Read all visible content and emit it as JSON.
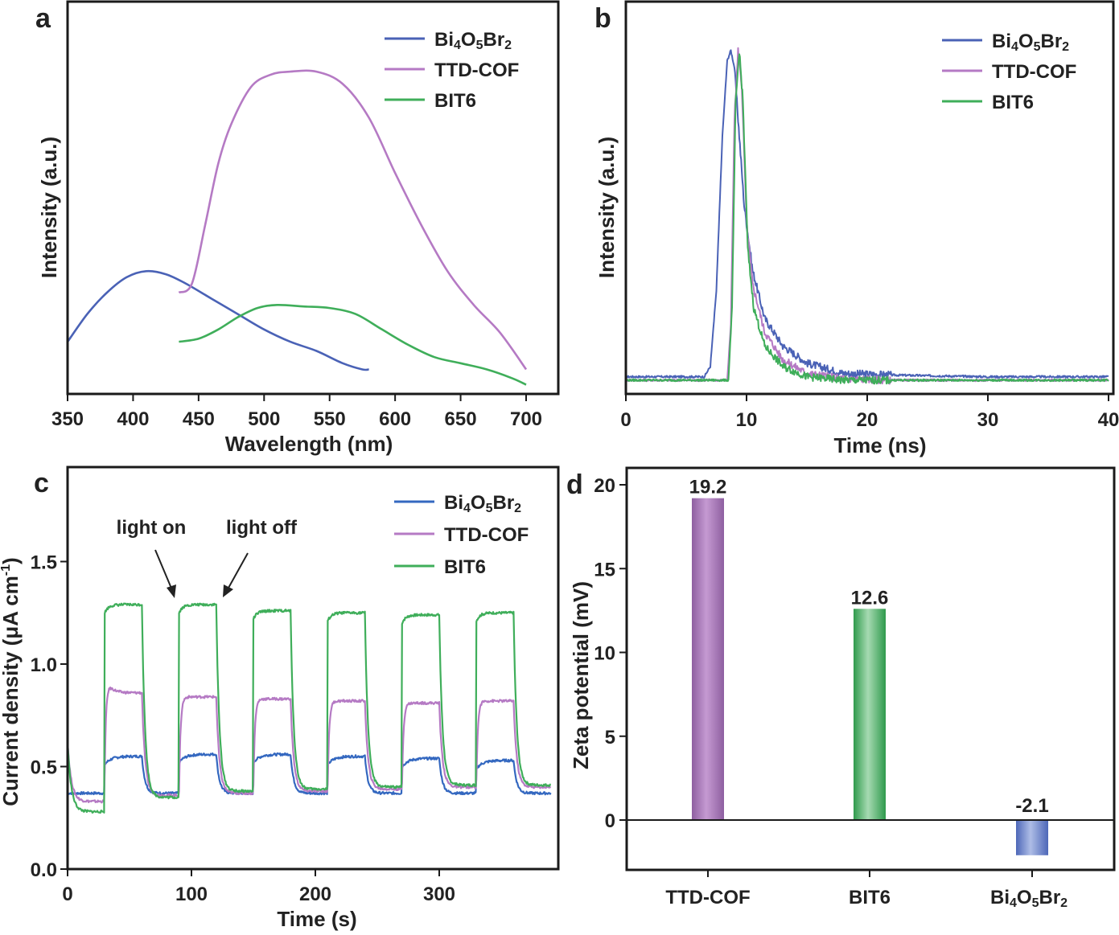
{
  "colors": {
    "blue": "#4a62b6",
    "purple": "#b57ac4",
    "green": "#3fae5a",
    "c_blue": "#3468c0",
    "bar_purple": "#a678b4",
    "bar_green": "#52b46a",
    "bar_blue": "#6f86c8",
    "axis": "#1a1a1a"
  },
  "chart_data": [
    {
      "id": "a",
      "panel_label": "a",
      "type": "line",
      "xlabel": "Wavelength (nm)",
      "ylabel": "Intensity (a.u.)",
      "xlim": [
        350,
        710
      ],
      "ylim": [
        0,
        1.1
      ],
      "xticks": [
        350,
        400,
        450,
        500,
        550,
        600,
        650,
        700
      ],
      "legend": "top-right",
      "series": [
        {
          "name": "Bi4O5Br2",
          "name_main": "Bi",
          "name_sub": [
            "4",
            "O",
            "5",
            "Br",
            "2"
          ],
          "color": "#4a62b6",
          "x": [
            350,
            365,
            380,
            395,
            410,
            425,
            440,
            460,
            480,
            500,
            520,
            540,
            560,
            575,
            580
          ],
          "y": [
            0.17,
            0.26,
            0.33,
            0.38,
            0.4,
            0.39,
            0.36,
            0.31,
            0.26,
            0.21,
            0.17,
            0.14,
            0.1,
            0.08,
            0.08
          ]
        },
        {
          "name": "TTD-COF",
          "color": "#b57ac4",
          "x": [
            435,
            445,
            455,
            465,
            475,
            490,
            505,
            520,
            540,
            560,
            580,
            600,
            620,
            640,
            660,
            680,
            700
          ],
          "y": [
            0.33,
            0.36,
            0.55,
            0.75,
            0.88,
            1.0,
            1.04,
            1.05,
            1.05,
            1.01,
            0.9,
            0.72,
            0.55,
            0.4,
            0.29,
            0.2,
            0.08
          ]
        },
        {
          "name": "BIT6",
          "color": "#3fae5a",
          "x": [
            435,
            450,
            465,
            480,
            495,
            510,
            530,
            550,
            570,
            590,
            610,
            630,
            650,
            670,
            690,
            700
          ],
          "y": [
            0.17,
            0.18,
            0.21,
            0.25,
            0.28,
            0.29,
            0.285,
            0.28,
            0.26,
            0.21,
            0.16,
            0.12,
            0.1,
            0.08,
            0.05,
            0.03
          ]
        }
      ]
    },
    {
      "id": "b",
      "panel_label": "b",
      "type": "line",
      "xlabel": "Time (ns)",
      "ylabel": "Intensity (a.u.)",
      "xlim": [
        0,
        40
      ],
      "ylim": [
        0,
        1.1
      ],
      "xticks": [
        0,
        10,
        20,
        30,
        40
      ],
      "legend": "top-right",
      "series": [
        {
          "name": "Bi4O5Br2",
          "name_main": "Bi",
          "name_sub": [
            "4",
            "O",
            "5",
            "Br",
            "2"
          ],
          "color": "#4a62b6",
          "x": [
            0,
            6.5,
            7.0,
            7.5,
            8.0,
            8.4,
            8.7,
            9.0,
            9.4,
            9.8,
            10.5,
            11.5,
            13,
            15,
            18,
            22,
            30,
            40
          ],
          "y": [
            0.05,
            0.05,
            0.08,
            0.3,
            0.75,
            0.97,
            1.0,
            0.95,
            0.75,
            0.55,
            0.36,
            0.22,
            0.14,
            0.09,
            0.06,
            0.055,
            0.05,
            0.05
          ]
        },
        {
          "name": "TTD-COF",
          "color": "#b57ac4",
          "x": [
            0,
            8.4,
            8.7,
            9.0,
            9.3,
            9.6,
            10.0,
            10.5,
            11.5,
            13,
            15,
            18,
            22,
            30,
            40
          ],
          "y": [
            0.04,
            0.04,
            0.2,
            0.8,
            1.0,
            0.9,
            0.5,
            0.32,
            0.18,
            0.1,
            0.06,
            0.045,
            0.04,
            0.04,
            0.04
          ]
        },
        {
          "name": "BIT6",
          "color": "#3fae5a",
          "x": [
            0,
            8.5,
            8.8,
            9.1,
            9.4,
            9.7,
            10.1,
            10.6,
            11.5,
            13,
            15,
            18,
            22,
            30,
            40
          ],
          "y": [
            0.04,
            0.04,
            0.25,
            0.85,
            1.0,
            0.85,
            0.42,
            0.25,
            0.14,
            0.08,
            0.05,
            0.04,
            0.04,
            0.04,
            0.04
          ]
        }
      ]
    },
    {
      "id": "c",
      "panel_label": "c",
      "type": "line",
      "xlabel": "Time (s)",
      "ylabel_main": "Current density (μA cm",
      "ylabel_sup": "-1",
      "ylabel_close": ")",
      "ylabel": "Current density (μA cm-1)",
      "xlim": [
        0,
        390
      ],
      "ylim": [
        0,
        1.85
      ],
      "xticks": [
        0,
        100,
        200,
        300
      ],
      "yticks": [
        0.0,
        0.5,
        1.0,
        1.5
      ],
      "ytick_labels": [
        "0.0",
        "0.5",
        "1.0",
        "1.5"
      ],
      "legend": "top-right",
      "annotations": [
        {
          "text": "light on"
        },
        {
          "text": "light off"
        }
      ],
      "cycles_on_off_s": [
        [
          30,
          60
        ],
        [
          90,
          120
        ],
        [
          150,
          180
        ],
        [
          210,
          240
        ],
        [
          270,
          300
        ],
        [
          330,
          360
        ]
      ],
      "series": [
        {
          "name": "Bi4O5Br2",
          "name_main": "Bi",
          "name_sub": [
            "4",
            "O",
            "5",
            "Br",
            "2"
          ],
          "color": "#3468c0",
          "on_levels": [
            0.55,
            0.56,
            0.56,
            0.55,
            0.54,
            0.53
          ],
          "off_levels": [
            0.37,
            0.37,
            0.37,
            0.37,
            0.37,
            0.37
          ]
        },
        {
          "name": "TTD-COF",
          "color": "#b57ac4",
          "on_levels": [
            0.86,
            0.84,
            0.83,
            0.82,
            0.81,
            0.82
          ],
          "off_levels": [
            0.33,
            0.36,
            0.37,
            0.38,
            0.39,
            0.4
          ]
        },
        {
          "name": "BIT6",
          "color": "#3fae5a",
          "on_levels": [
            1.29,
            1.29,
            1.26,
            1.25,
            1.24,
            1.25
          ],
          "off_levels": [
            0.28,
            0.35,
            0.38,
            0.39,
            0.4,
            0.41
          ]
        }
      ]
    },
    {
      "id": "d",
      "panel_label": "d",
      "type": "bar",
      "xlabel": "",
      "ylabel": "Zeta potential (mV)",
      "ylim": [
        -3,
        21
      ],
      "yticks": [
        0,
        5,
        10,
        15,
        20
      ],
      "ytick_labels": [
        "0",
        "5",
        "10",
        "15",
        "20"
      ],
      "categories": [
        "TTD-COF",
        "BIT6",
        "Bi4O5Br2"
      ],
      "category_bi_main": "Bi",
      "category_bi_sub": [
        "4",
        "O",
        "5",
        "Br",
        "2"
      ],
      "values": [
        19.2,
        12.6,
        -2.1
      ],
      "value_labels": [
        "19.2",
        "12.6",
        "-2.1"
      ],
      "bar_colors": [
        "#a678b4",
        "#52b46a",
        "#6f86c8"
      ]
    }
  ]
}
